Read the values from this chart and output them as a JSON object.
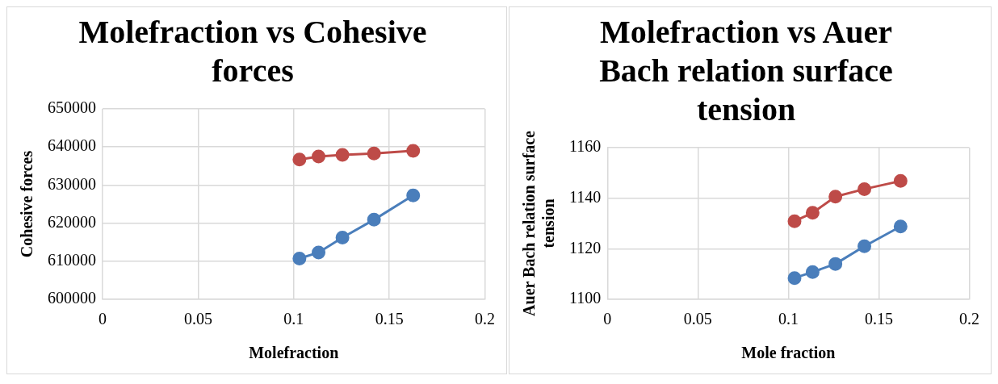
{
  "chart_data": [
    {
      "type": "line",
      "title": "Molefraction vs Cohesive forces",
      "xlabel": "Molefraction",
      "ylabel": "Cohesive forces",
      "x": [
        0.103,
        0.113,
        0.1255,
        0.142,
        0.1625
      ],
      "series": [
        {
          "color": "#4a7ebb",
          "values": [
            610700,
            612300,
            616200,
            620900,
            627300
          ]
        },
        {
          "color": "#be4b48",
          "values": [
            636700,
            637500,
            637900,
            638300,
            639000
          ]
        }
      ],
      "xlim": [
        0,
        0.2
      ],
      "xticks": [
        0,
        0.05,
        0.1,
        0.15,
        0.2
      ],
      "ylim": [
        600000,
        650000
      ],
      "yticks": [
        600000,
        610000,
        620000,
        630000,
        640000,
        650000
      ],
      "grid": true,
      "legend": false,
      "marker": "circle",
      "line_style": "solid"
    },
    {
      "type": "line",
      "title": "Molefraction vs Auer Bach relation surface tension",
      "xlabel": "Mole fraction",
      "ylabel": "Auer Bach relation surface tension",
      "x": [
        0.1034,
        0.1134,
        0.126,
        0.142,
        0.162
      ],
      "series": [
        {
          "color": "#4a7ebb",
          "values": [
            1108.4,
            1110.8,
            1114,
            1121,
            1128.8
          ]
        },
        {
          "color": "#be4b48",
          "values": [
            1130.9,
            1134.2,
            1140.6,
            1143.6,
            1146.8
          ]
        }
      ],
      "xlim": [
        0,
        0.2
      ],
      "xticks": [
        0,
        0.05,
        0.1,
        0.15,
        0.2
      ],
      "ylim": [
        1100,
        1160
      ],
      "yticks": [
        1100,
        1120,
        1140,
        1160
      ],
      "grid": true,
      "legend": false,
      "marker": "circle",
      "line_style": "solid"
    }
  ]
}
